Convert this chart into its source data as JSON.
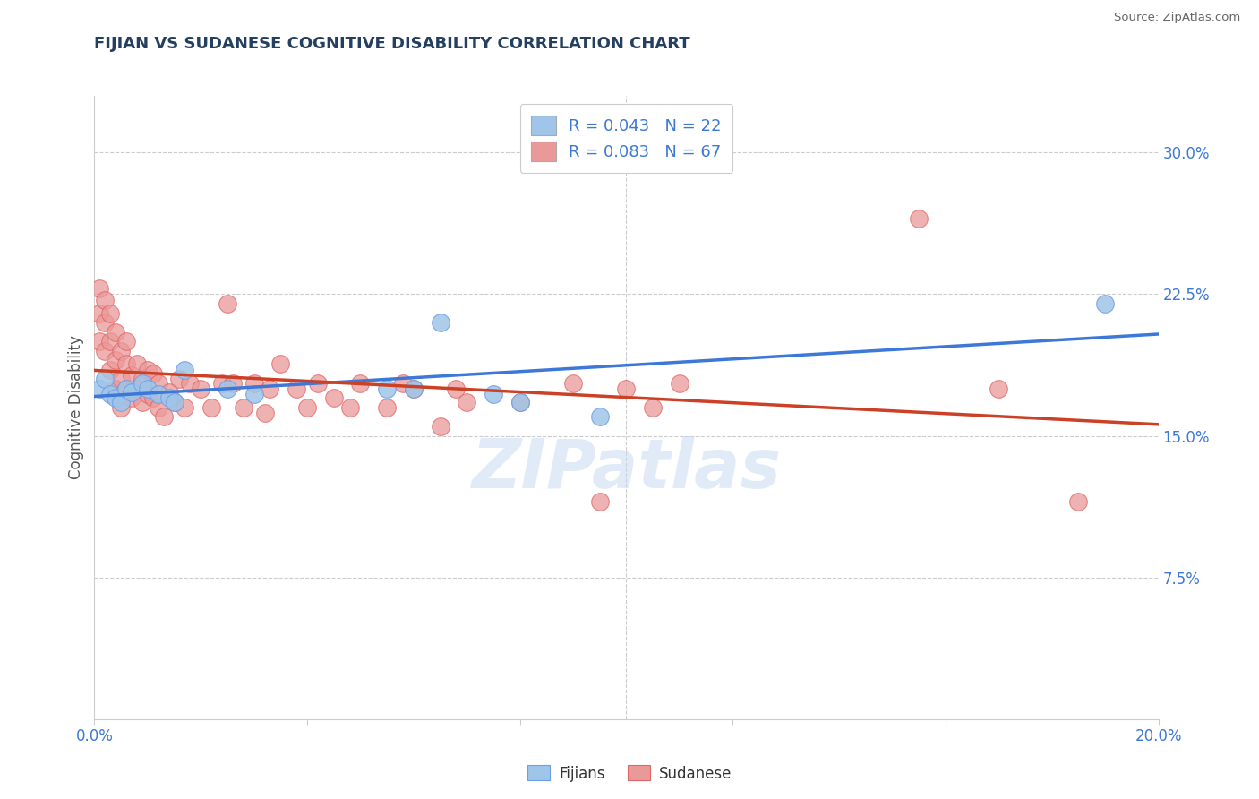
{
  "title": "FIJIAN VS SUDANESE COGNITIVE DISABILITY CORRELATION CHART",
  "source": "Source: ZipAtlas.com",
  "ylabel": "Cognitive Disability",
  "xlim": [
    0.0,
    0.2
  ],
  "ylim": [
    0.0,
    0.33
  ],
  "ytick_labels_right": [
    "7.5%",
    "15.0%",
    "22.5%",
    "30.0%"
  ],
  "ytick_vals_right": [
    0.075,
    0.15,
    0.225,
    0.3
  ],
  "fijian_R": 0.043,
  "fijian_N": 22,
  "sudanese_R": 0.083,
  "sudanese_N": 67,
  "fijian_color": "#9fc5e8",
  "fijian_edge_color": "#6d9eeb",
  "fijian_line_color": "#3c78d8",
  "sudanese_color": "#ea9999",
  "sudanese_edge_color": "#e06666",
  "sudanese_line_color": "#cc4125",
  "legend_fijian_color": "#9fc5e8",
  "legend_sudanese_color": "#ea9999",
  "background_color": "#ffffff",
  "grid_color": "#cccccc",
  "title_color": "#243f60",
  "axis_label_color": "#3c78d8",
  "source_color": "#666666",
  "fijian_x": [
    0.001,
    0.002,
    0.003,
    0.004,
    0.005,
    0.006,
    0.007,
    0.009,
    0.01,
    0.012,
    0.014,
    0.015,
    0.017,
    0.025,
    0.03,
    0.055,
    0.06,
    0.065,
    0.075,
    0.08,
    0.095,
    0.19
  ],
  "fijian_y": [
    0.175,
    0.18,
    0.172,
    0.17,
    0.168,
    0.175,
    0.173,
    0.178,
    0.175,
    0.172,
    0.17,
    0.168,
    0.185,
    0.175,
    0.172,
    0.175,
    0.175,
    0.21,
    0.172,
    0.168,
    0.16,
    0.22
  ],
  "sudanese_x": [
    0.001,
    0.001,
    0.001,
    0.002,
    0.002,
    0.002,
    0.003,
    0.003,
    0.003,
    0.004,
    0.004,
    0.004,
    0.005,
    0.005,
    0.005,
    0.006,
    0.006,
    0.006,
    0.007,
    0.007,
    0.008,
    0.008,
    0.009,
    0.009,
    0.01,
    0.01,
    0.011,
    0.011,
    0.012,
    0.012,
    0.013,
    0.014,
    0.015,
    0.016,
    0.017,
    0.018,
    0.02,
    0.022,
    0.024,
    0.025,
    0.026,
    0.028,
    0.03,
    0.032,
    0.033,
    0.035,
    0.038,
    0.04,
    0.042,
    0.045,
    0.048,
    0.05,
    0.055,
    0.058,
    0.06,
    0.065,
    0.068,
    0.07,
    0.08,
    0.09,
    0.095,
    0.1,
    0.105,
    0.11,
    0.155,
    0.17,
    0.185
  ],
  "sudanese_y": [
    0.2,
    0.215,
    0.228,
    0.195,
    0.21,
    0.222,
    0.185,
    0.2,
    0.215,
    0.175,
    0.19,
    0.205,
    0.165,
    0.18,
    0.195,
    0.175,
    0.188,
    0.2,
    0.17,
    0.182,
    0.175,
    0.188,
    0.168,
    0.18,
    0.172,
    0.185,
    0.17,
    0.183,
    0.165,
    0.178,
    0.16,
    0.173,
    0.168,
    0.18,
    0.165,
    0.178,
    0.175,
    0.165,
    0.178,
    0.22,
    0.178,
    0.165,
    0.178,
    0.162,
    0.175,
    0.188,
    0.175,
    0.165,
    0.178,
    0.17,
    0.165,
    0.178,
    0.165,
    0.178,
    0.175,
    0.155,
    0.175,
    0.168,
    0.168,
    0.178,
    0.115,
    0.175,
    0.165,
    0.178,
    0.265,
    0.175,
    0.115
  ]
}
